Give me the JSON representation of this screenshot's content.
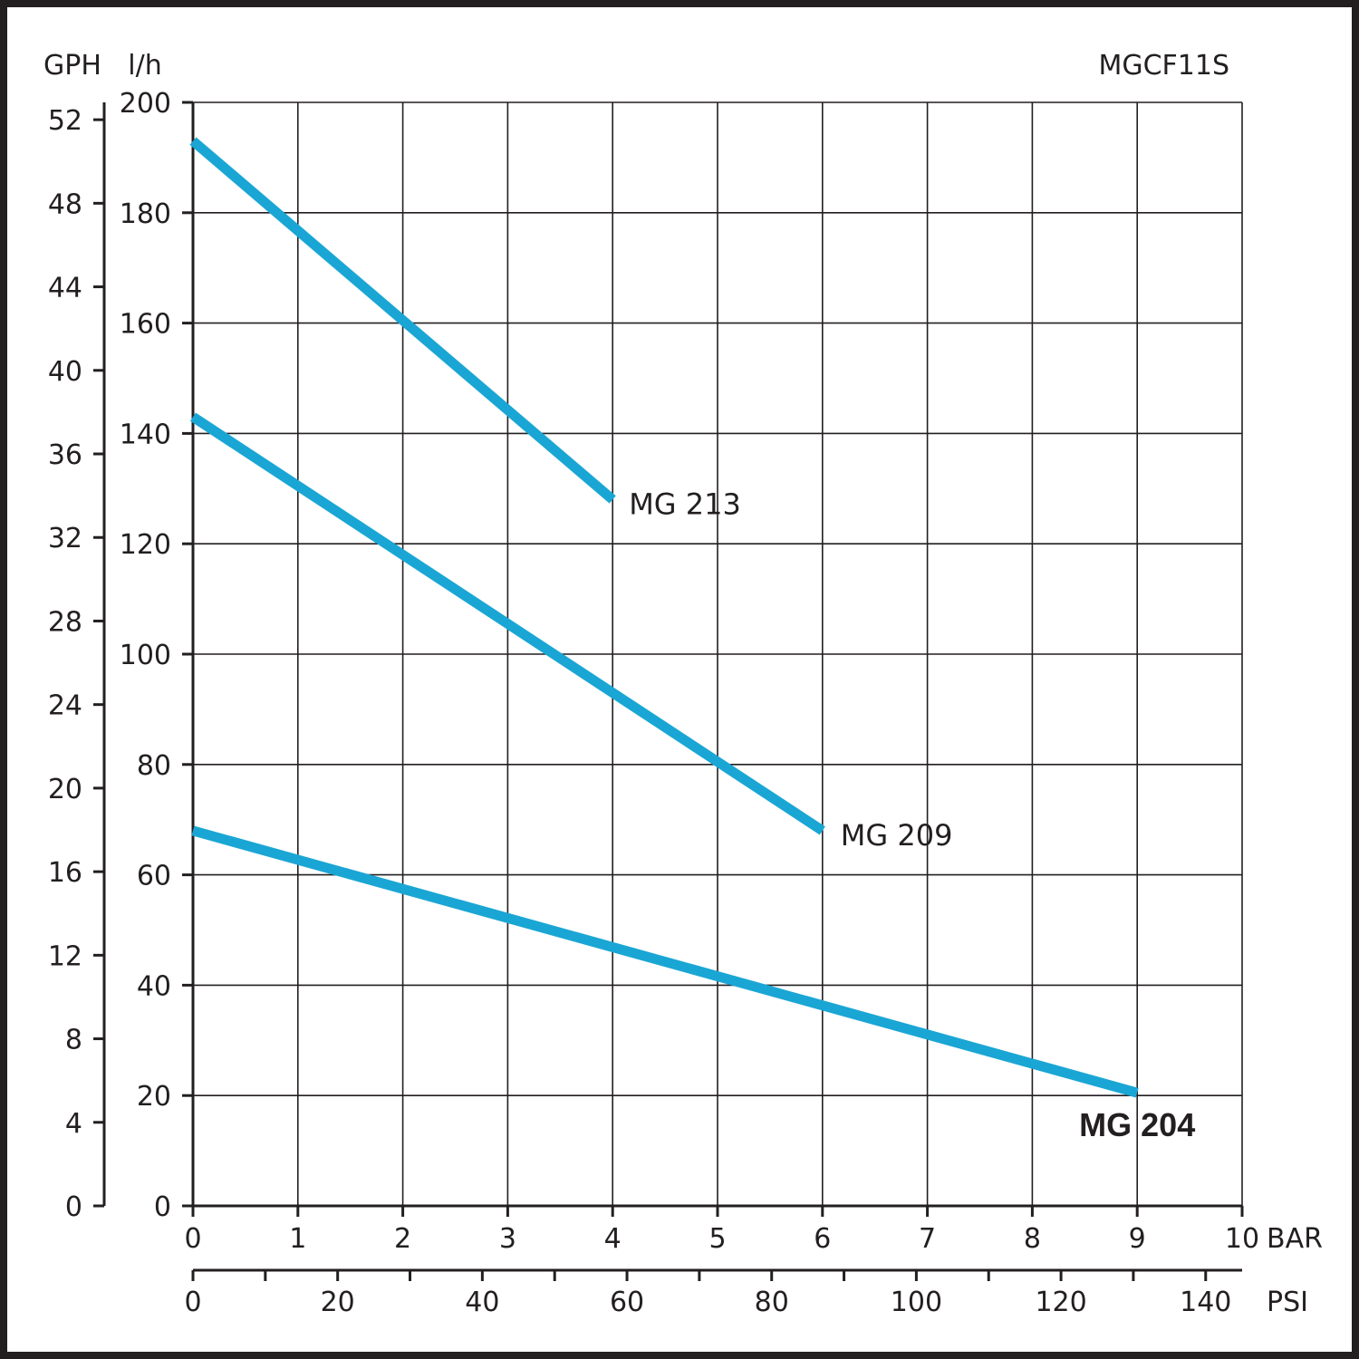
{
  "chart_data": {
    "type": "line",
    "title": "MGCF11S",
    "y_left_outer": {
      "label": "GPH",
      "range": [
        0,
        52
      ],
      "ticks": [
        0,
        4,
        8,
        12,
        16,
        20,
        24,
        28,
        32,
        36,
        40,
        44,
        48,
        52
      ]
    },
    "y_left_inner": {
      "label": "l/h",
      "range": [
        0,
        200
      ],
      "ticks": [
        0,
        20,
        40,
        60,
        80,
        100,
        120,
        140,
        160,
        180,
        200
      ]
    },
    "x_bar": {
      "label": "BAR",
      "range": [
        0,
        10
      ],
      "ticks": [
        0,
        1,
        2,
        3,
        4,
        5,
        6,
        7,
        8,
        9,
        10
      ]
    },
    "x_psi": {
      "label": "PSI",
      "range": [
        0,
        145.04
      ],
      "ticks": [
        0,
        20,
        40,
        60,
        80,
        100,
        120,
        140
      ],
      "minor_ticks": [
        10,
        30,
        50,
        70,
        90,
        110,
        130
      ]
    },
    "grid": true,
    "series_color": "#1aa6d4",
    "series": [
      {
        "name": "MG 213",
        "x": [
          0,
          4
        ],
        "y": [
          193,
          128
        ],
        "bold_label": false
      },
      {
        "name": "MG 209",
        "x": [
          0,
          6
        ],
        "y": [
          143,
          68
        ],
        "bold_label": false
      },
      {
        "name": "MG 204",
        "x": [
          0,
          9
        ],
        "y": [
          68,
          20.5
        ],
        "bold_label": true
      }
    ]
  }
}
